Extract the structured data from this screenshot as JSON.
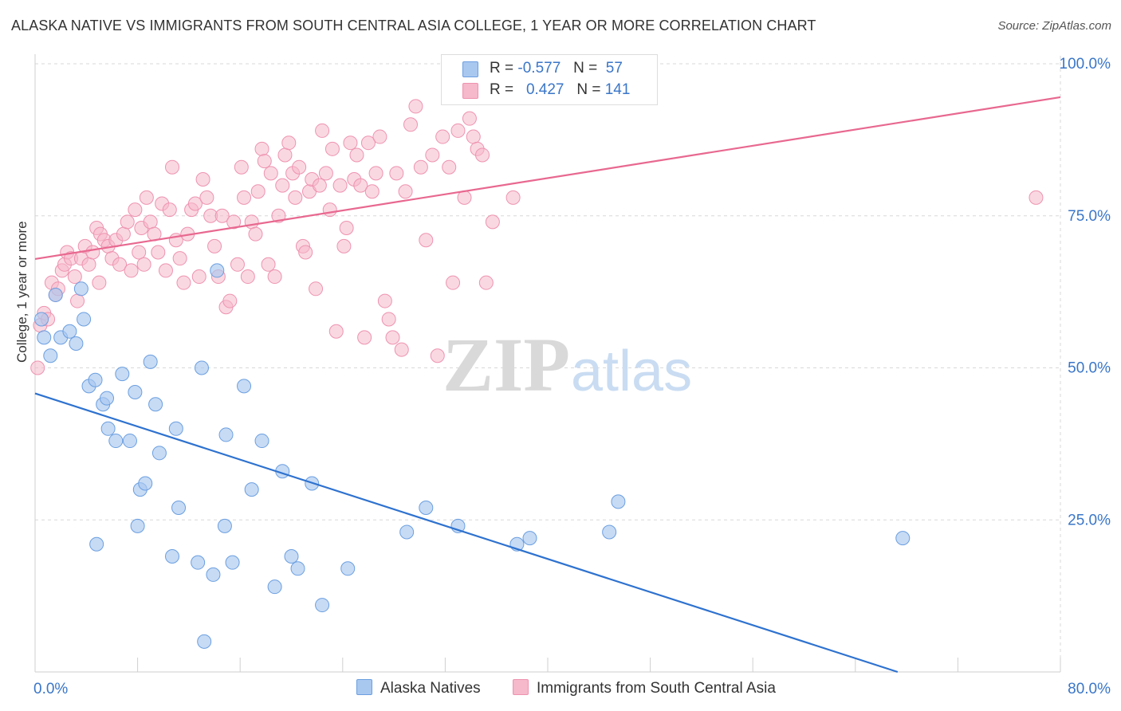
{
  "title": "ALASKA NATIVE VS IMMIGRANTS FROM SOUTH CENTRAL ASIA COLLEGE, 1 YEAR OR MORE CORRELATION CHART",
  "source": "Source: ZipAtlas.com",
  "watermark": {
    "zip": "ZIP",
    "atlas": "atlas"
  },
  "legend": {
    "row1": {
      "r_label": "R =",
      "r_value": "-0.577",
      "n_label": "N =",
      "n_value": "57"
    },
    "row2": {
      "r_label": "R =",
      "r_value": "0.427",
      "n_label": "N =",
      "n_value": "141"
    }
  },
  "bottom_legend": {
    "blue": "Alaska Natives",
    "pink": "Immigrants from South Central Asia"
  },
  "colors": {
    "blue_fill": "#a9c8f0",
    "blue_stroke": "#6b9fe0",
    "blue_line": "#2e72cf",
    "pink_fill": "#f6b8cb",
    "pink_stroke": "#ee93b0",
    "pink_line": "#e86890",
    "axis_text": "#3a76c8",
    "grid": "#d8d8d8"
  },
  "chart_data": {
    "type": "scatter",
    "xlabel": "",
    "ylabel": "College, 1 year or more",
    "xlim": [
      0,
      80
    ],
    "ylim": [
      0,
      100
    ],
    "x_tick_labels": [
      {
        "v": 0,
        "label": "0.0%"
      },
      {
        "v": 80,
        "label": "80.0%"
      }
    ],
    "y_tick_labels": [
      {
        "v": 25,
        "label": "25.0%"
      },
      {
        "v": 50,
        "label": "50.0%"
      },
      {
        "v": 75,
        "label": "75.0%"
      },
      {
        "v": 100,
        "label": "100.0%"
      }
    ],
    "grid": true,
    "legend_position": "top-center",
    "series": [
      {
        "name": "Alaska Natives",
        "color": "#a9c8f0",
        "trend": {
          "x0": 0,
          "y0": 45.8,
          "x1": 67.3,
          "y1": 0
        },
        "points": [
          [
            0.5,
            58
          ],
          [
            0.7,
            55
          ],
          [
            1.2,
            52
          ],
          [
            1.6,
            62
          ],
          [
            2.0,
            55
          ],
          [
            2.7,
            56
          ],
          [
            3.2,
            54
          ],
          [
            3.6,
            63
          ],
          [
            3.8,
            58
          ],
          [
            4.2,
            47
          ],
          [
            4.7,
            48
          ],
          [
            4.8,
            21
          ],
          [
            5.3,
            44
          ],
          [
            5.6,
            45
          ],
          [
            5.7,
            40
          ],
          [
            6.3,
            38
          ],
          [
            6.8,
            49
          ],
          [
            7.4,
            38
          ],
          [
            7.8,
            46
          ],
          [
            8.0,
            24
          ],
          [
            8.2,
            30
          ],
          [
            8.6,
            31
          ],
          [
            9.0,
            51
          ],
          [
            9.4,
            44
          ],
          [
            9.7,
            36
          ],
          [
            10.7,
            19
          ],
          [
            11.0,
            40
          ],
          [
            11.2,
            27
          ],
          [
            12.7,
            18
          ],
          [
            13.0,
            50
          ],
          [
            13.2,
            5
          ],
          [
            13.9,
            16
          ],
          [
            14.2,
            66
          ],
          [
            14.8,
            24
          ],
          [
            14.9,
            39
          ],
          [
            15.4,
            18
          ],
          [
            16.3,
            47
          ],
          [
            16.9,
            30
          ],
          [
            17.7,
            38
          ],
          [
            18.7,
            14
          ],
          [
            19.3,
            33
          ],
          [
            20.0,
            19
          ],
          [
            20.5,
            17
          ],
          [
            21.6,
            31
          ],
          [
            22.4,
            11
          ],
          [
            24.4,
            17
          ],
          [
            29.0,
            23
          ],
          [
            30.5,
            27
          ],
          [
            33.0,
            24
          ],
          [
            37.6,
            21
          ],
          [
            38.6,
            22
          ],
          [
            44.8,
            23
          ],
          [
            45.5,
            28
          ],
          [
            67.7,
            22
          ]
        ]
      },
      {
        "name": "Immigrants from South Central Asia",
        "color": "#f6b8cb",
        "trend": {
          "x0": 0,
          "y0": 67.9,
          "x1": 80,
          "y1": 94.5
        },
        "points": [
          [
            0.2,
            50
          ],
          [
            0.4,
            57
          ],
          [
            0.7,
            59
          ],
          [
            1.0,
            58
          ],
          [
            1.3,
            64
          ],
          [
            1.6,
            62
          ],
          [
            1.8,
            63
          ],
          [
            2.1,
            66
          ],
          [
            2.3,
            67
          ],
          [
            2.5,
            69
          ],
          [
            2.8,
            68
          ],
          [
            3.1,
            65
          ],
          [
            3.3,
            61
          ],
          [
            3.6,
            68
          ],
          [
            3.9,
            70
          ],
          [
            4.2,
            67
          ],
          [
            4.5,
            69
          ],
          [
            4.8,
            73
          ],
          [
            5.0,
            64
          ],
          [
            5.1,
            72
          ],
          [
            5.4,
            71
          ],
          [
            5.7,
            70
          ],
          [
            6.0,
            68
          ],
          [
            6.3,
            71
          ],
          [
            6.6,
            67
          ],
          [
            6.9,
            72
          ],
          [
            7.2,
            74
          ],
          [
            7.5,
            66
          ],
          [
            7.8,
            76
          ],
          [
            8.1,
            69
          ],
          [
            8.3,
            73
          ],
          [
            8.5,
            67
          ],
          [
            8.7,
            78
          ],
          [
            9.0,
            74
          ],
          [
            9.3,
            72
          ],
          [
            9.6,
            69
          ],
          [
            9.9,
            77
          ],
          [
            10.2,
            66
          ],
          [
            10.5,
            76
          ],
          [
            10.7,
            83
          ],
          [
            11.0,
            71
          ],
          [
            11.3,
            68
          ],
          [
            11.6,
            64
          ],
          [
            11.9,
            72
          ],
          [
            12.2,
            76
          ],
          [
            12.5,
            77
          ],
          [
            12.8,
            65
          ],
          [
            13.1,
            81
          ],
          [
            13.4,
            78
          ],
          [
            13.7,
            75
          ],
          [
            14.0,
            70
          ],
          [
            14.3,
            65
          ],
          [
            14.6,
            75
          ],
          [
            14.9,
            60
          ],
          [
            15.2,
            61
          ],
          [
            15.5,
            74
          ],
          [
            15.8,
            67
          ],
          [
            16.1,
            83
          ],
          [
            16.3,
            78
          ],
          [
            16.6,
            65
          ],
          [
            16.9,
            74
          ],
          [
            17.2,
            72
          ],
          [
            17.4,
            79
          ],
          [
            17.7,
            86
          ],
          [
            17.9,
            84
          ],
          [
            18.2,
            67
          ],
          [
            18.4,
            82
          ],
          [
            18.7,
            65
          ],
          [
            19.0,
            75
          ],
          [
            19.3,
            80
          ],
          [
            19.5,
            85
          ],
          [
            19.8,
            87
          ],
          [
            20.1,
            82
          ],
          [
            20.3,
            78
          ],
          [
            20.6,
            83
          ],
          [
            20.9,
            70
          ],
          [
            21.1,
            69
          ],
          [
            21.4,
            79
          ],
          [
            21.6,
            81
          ],
          [
            21.9,
            63
          ],
          [
            22.2,
            80
          ],
          [
            22.4,
            89
          ],
          [
            22.7,
            82
          ],
          [
            23.0,
            76
          ],
          [
            23.2,
            86
          ],
          [
            23.5,
            56
          ],
          [
            23.8,
            80
          ],
          [
            24.1,
            70
          ],
          [
            24.3,
            73
          ],
          [
            24.6,
            87
          ],
          [
            24.9,
            81
          ],
          [
            25.1,
            85
          ],
          [
            25.4,
            80
          ],
          [
            25.7,
            55
          ],
          [
            26.0,
            87
          ],
          [
            26.3,
            79
          ],
          [
            26.6,
            82
          ],
          [
            26.9,
            88
          ],
          [
            27.3,
            61
          ],
          [
            27.6,
            58
          ],
          [
            27.9,
            55
          ],
          [
            28.2,
            82
          ],
          [
            28.6,
            53
          ],
          [
            28.9,
            79
          ],
          [
            29.3,
            90
          ],
          [
            29.7,
            93
          ],
          [
            30.1,
            83
          ],
          [
            30.5,
            71
          ],
          [
            31.0,
            85
          ],
          [
            31.4,
            52
          ],
          [
            31.8,
            88
          ],
          [
            32.3,
            83
          ],
          [
            32.6,
            64
          ],
          [
            33.0,
            89
          ],
          [
            33.5,
            78
          ],
          [
            33.9,
            91
          ],
          [
            34.2,
            88
          ],
          [
            34.5,
            86
          ],
          [
            34.9,
            85
          ],
          [
            35.2,
            64
          ],
          [
            35.7,
            74
          ],
          [
            37.3,
            78
          ],
          [
            78.1,
            78
          ]
        ]
      }
    ]
  }
}
